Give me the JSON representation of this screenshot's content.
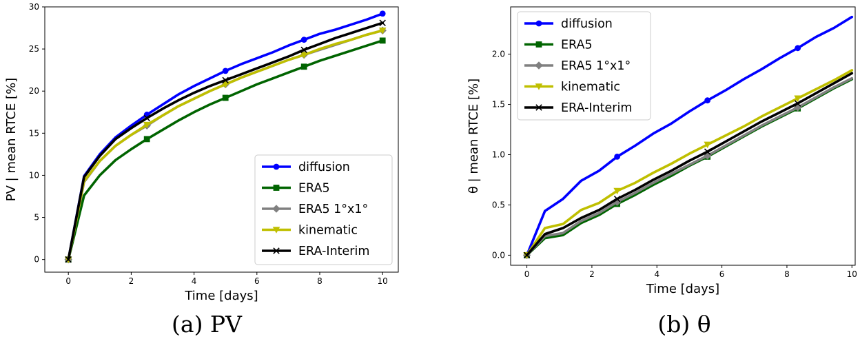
{
  "chart_data": [
    {
      "type": "line",
      "caption": "(a) PV",
      "xlabel": "Time [days]",
      "ylabel": "PV | mean RTCE [%]",
      "xlim": [
        -0.75,
        10.5
      ],
      "ylim": [
        -1.5,
        30.0
      ],
      "xticks": [
        0,
        2,
        4,
        6,
        8,
        10
      ],
      "yticks": [
        0,
        5,
        10,
        15,
        20,
        25,
        30
      ],
      "grid": false,
      "legend": "lower right",
      "series": [
        {
          "name": "diffusion",
          "color": "#0000ff",
          "marker": "circle",
          "x": [
            0,
            0.5,
            1.0,
            1.5,
            2.0,
            2.5,
            3.0,
            3.5,
            4.0,
            4.5,
            5.0,
            5.5,
            6.0,
            6.5,
            7.0,
            7.5,
            8.0,
            8.5,
            9.0,
            9.5,
            10.0
          ],
          "y": [
            0,
            9.9,
            12.5,
            14.5,
            15.9,
            17.2,
            18.4,
            19.6,
            20.6,
            21.5,
            22.4,
            23.2,
            23.9,
            24.6,
            25.4,
            26.1,
            26.8,
            27.3,
            27.9,
            28.5,
            29.2
          ],
          "marker_x": [
            0,
            2.5,
            5.0,
            7.5,
            10.0
          ]
        },
        {
          "name": "ERA5",
          "color": "#006400",
          "marker": "square",
          "x": [
            0,
            0.5,
            1.0,
            1.5,
            2.0,
            2.5,
            3.0,
            3.5,
            4.0,
            4.5,
            5.0,
            5.5,
            6.0,
            6.5,
            7.0,
            7.5,
            8.0,
            8.5,
            9.0,
            9.5,
            10.0
          ],
          "y": [
            0,
            7.6,
            10.0,
            11.8,
            13.1,
            14.3,
            15.4,
            16.5,
            17.5,
            18.4,
            19.2,
            20.0,
            20.8,
            21.5,
            22.2,
            22.9,
            23.6,
            24.2,
            24.8,
            25.4,
            26.0
          ],
          "marker_x": [
            0,
            2.5,
            5.0,
            7.5,
            10.0
          ]
        },
        {
          "name": "ERA5 1°x1°",
          "color": "#808080",
          "marker": "diamond",
          "x": [
            0,
            0.5,
            1.0,
            1.5,
            2.0,
            2.5,
            3.0,
            3.5,
            4.0,
            4.5,
            5.0,
            5.5,
            6.0,
            6.5,
            7.0,
            7.5,
            8.0,
            8.5,
            9.0,
            9.5,
            10.0
          ],
          "y": [
            0,
            9.2,
            11.7,
            13.5,
            14.8,
            15.9,
            17.1,
            18.2,
            19.1,
            20.0,
            20.8,
            21.6,
            22.3,
            23.0,
            23.7,
            24.3,
            24.9,
            25.5,
            26.1,
            26.7,
            27.2
          ],
          "marker_x": [
            0,
            2.5,
            5.0,
            7.5,
            10.0
          ]
        },
        {
          "name": "kinematic",
          "color": "#bfbf00",
          "marker": "triangle-down",
          "x": [
            0,
            0.5,
            1.0,
            1.5,
            2.0,
            2.5,
            3.0,
            3.5,
            4.0,
            4.5,
            5.0,
            5.5,
            6.0,
            6.5,
            7.0,
            7.5,
            8.0,
            8.5,
            9.0,
            9.5,
            10.0
          ],
          "y": [
            0,
            9.3,
            11.7,
            13.5,
            14.8,
            16.0,
            17.1,
            18.2,
            19.1,
            20.0,
            20.8,
            21.6,
            22.3,
            23.0,
            23.7,
            24.3,
            25.0,
            25.6,
            26.1,
            26.7,
            27.2
          ],
          "marker_x": [
            0,
            2.5,
            5.0,
            7.5,
            10.0
          ]
        },
        {
          "name": "ERA-Interim",
          "color": "#000000",
          "marker": "x",
          "x": [
            0,
            0.5,
            1.0,
            1.5,
            2.0,
            2.5,
            3.0,
            3.5,
            4.0,
            4.5,
            5.0,
            5.5,
            6.0,
            6.5,
            7.0,
            7.5,
            8.0,
            8.5,
            9.0,
            9.5,
            10.0
          ],
          "y": [
            0,
            9.8,
            12.3,
            14.3,
            15.6,
            16.8,
            17.9,
            18.9,
            19.8,
            20.6,
            21.3,
            22.0,
            22.7,
            23.4,
            24.1,
            24.9,
            25.6,
            26.3,
            26.9,
            27.5,
            28.1
          ],
          "marker_x": [
            0,
            2.5,
            5.0,
            7.5,
            10.0
          ]
        }
      ]
    },
    {
      "type": "line",
      "caption": "(b) θ",
      "xlabel": "Time [days]",
      "ylabel": "θ | mean RTCE [%]",
      "xlim": [
        -0.5,
        10.1
      ],
      "ylim": [
        -0.1,
        2.47
      ],
      "xticks": [
        0,
        2,
        4,
        6,
        8,
        10
      ],
      "yticks": [
        0.0,
        0.5,
        1.0,
        1.5,
        2.0
      ],
      "grid": false,
      "legend": "upper left",
      "series": [
        {
          "name": "diffusion",
          "color": "#0000ff",
          "marker": "circle",
          "x": [
            0,
            0.556,
            1.111,
            1.667,
            2.222,
            2.778,
            3.333,
            3.889,
            4.444,
            5.0,
            5.556,
            6.111,
            6.667,
            7.222,
            7.778,
            8.333,
            8.889,
            9.444,
            10.0
          ],
          "y": [
            0,
            0.44,
            0.56,
            0.74,
            0.84,
            0.98,
            1.09,
            1.21,
            1.31,
            1.43,
            1.54,
            1.64,
            1.75,
            1.85,
            1.96,
            2.06,
            2.17,
            2.26,
            2.37
          ],
          "marker_x": [
            0,
            2.778,
            5.556,
            8.333
          ]
        },
        {
          "name": "ERA5",
          "color": "#006400",
          "marker": "square",
          "x": [
            0,
            0.556,
            1.111,
            1.667,
            2.222,
            2.778,
            3.333,
            3.889,
            4.444,
            5.0,
            5.556,
            6.111,
            6.667,
            7.222,
            7.778,
            8.333,
            8.889,
            9.444,
            10.0
          ],
          "y": [
            0,
            0.17,
            0.2,
            0.32,
            0.4,
            0.51,
            0.6,
            0.7,
            0.79,
            0.89,
            0.98,
            1.08,
            1.18,
            1.28,
            1.37,
            1.46,
            1.56,
            1.66,
            1.75
          ],
          "marker_x": [
            0,
            2.778,
            5.556,
            8.333
          ]
        },
        {
          "name": "ERA5 1°x1°",
          "color": "#808080",
          "marker": "diamond",
          "x": [
            0,
            0.556,
            1.111,
            1.667,
            2.222,
            2.778,
            3.333,
            3.889,
            4.444,
            5.0,
            5.556,
            6.111,
            6.667,
            7.222,
            7.778,
            8.333,
            8.889,
            9.444,
            10.0
          ],
          "y": [
            0,
            0.19,
            0.22,
            0.34,
            0.42,
            0.53,
            0.62,
            0.72,
            0.81,
            0.9,
            0.99,
            1.09,
            1.19,
            1.29,
            1.38,
            1.47,
            1.57,
            1.67,
            1.76
          ],
          "marker_x": [
            0,
            2.778,
            5.556,
            8.333
          ]
        },
        {
          "name": "kinematic",
          "color": "#bfbf00",
          "marker": "triangle-down",
          "x": [
            0,
            0.556,
            1.111,
            1.667,
            2.222,
            2.778,
            3.333,
            3.889,
            4.444,
            5.0,
            5.556,
            6.111,
            6.667,
            7.222,
            7.778,
            8.333,
            8.889,
            9.444,
            10.0
          ],
          "y": [
            0,
            0.27,
            0.31,
            0.45,
            0.52,
            0.64,
            0.72,
            0.82,
            0.91,
            1.01,
            1.1,
            1.19,
            1.28,
            1.38,
            1.47,
            1.56,
            1.65,
            1.74,
            1.84
          ],
          "marker_x": [
            0,
            2.778,
            5.556,
            8.333
          ]
        },
        {
          "name": "ERA-Interim",
          "color": "#000000",
          "marker": "x",
          "x": [
            0,
            0.556,
            1.111,
            1.667,
            2.222,
            2.778,
            3.333,
            3.889,
            4.444,
            5.0,
            5.556,
            6.111,
            6.667,
            7.222,
            7.778,
            8.333,
            8.889,
            9.444,
            10.0
          ],
          "y": [
            0,
            0.21,
            0.27,
            0.37,
            0.45,
            0.56,
            0.65,
            0.75,
            0.84,
            0.94,
            1.03,
            1.13,
            1.23,
            1.33,
            1.42,
            1.51,
            1.61,
            1.71,
            1.81
          ],
          "marker_x": [
            0,
            2.778,
            5.556,
            8.333
          ]
        }
      ]
    }
  ]
}
